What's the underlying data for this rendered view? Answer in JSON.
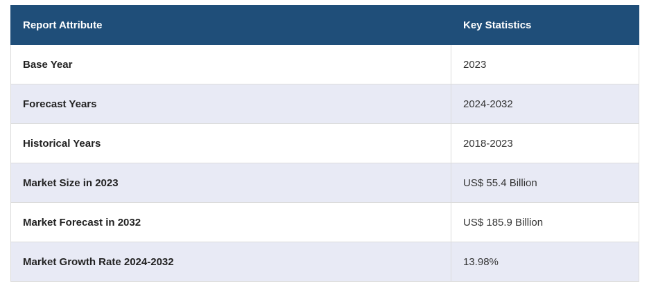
{
  "table": {
    "header": [
      "Report Attribute",
      "Key Statistics"
    ],
    "rows": [
      [
        "Base Year",
        "2023"
      ],
      [
        "Forecast Years",
        "2024-2032"
      ],
      [
        "Historical Years",
        "2018-2023"
      ],
      [
        "Market Size in 2023",
        "US$ 55.4 Billion"
      ],
      [
        "Market Forecast in 2032",
        "US$ 185.9 Billion"
      ],
      [
        "Market Growth Rate 2024-2032",
        "13.98%"
      ]
    ]
  }
}
